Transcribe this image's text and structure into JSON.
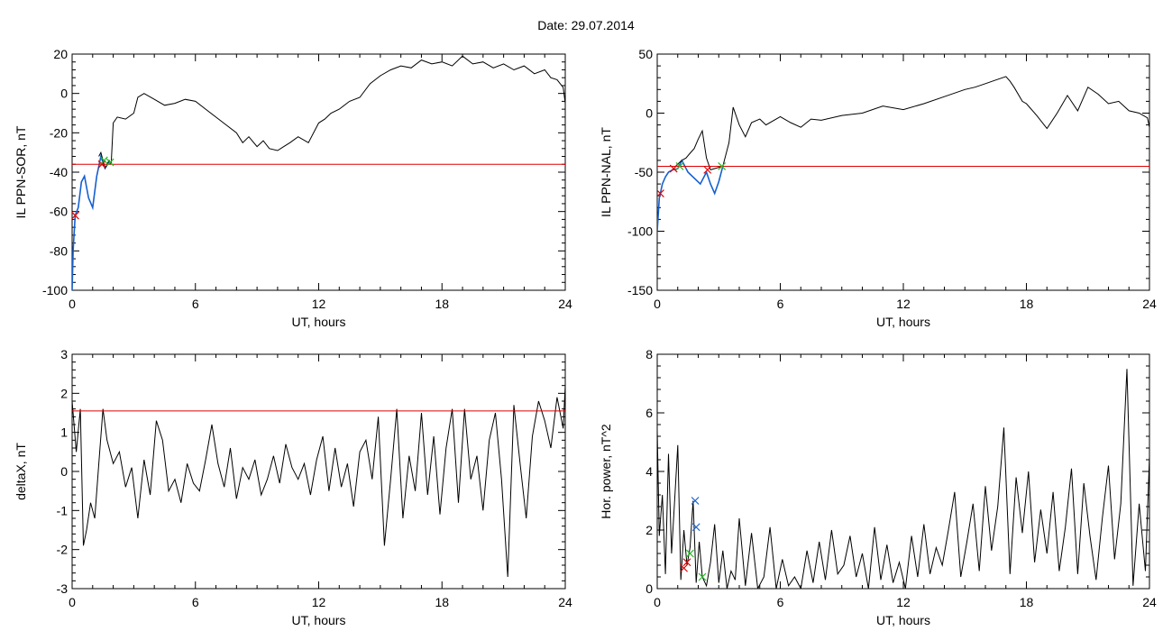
{
  "page": {
    "date_label": "Date:  29.07.2014"
  },
  "colors": {
    "axis": "#000000",
    "data": "#000000",
    "threshold": "#dd0000",
    "event": "#1560d0",
    "marker_red": "#dd0000",
    "marker_green": "#22bb22",
    "marker_blue": "#1560d0"
  },
  "chart_data": [
    {
      "id": "ppn-sor",
      "type": "line",
      "ylabel": "IL PPN-SOR, nT",
      "xlabel": "UT, hours",
      "xlim": [
        0,
        24
      ],
      "ylim": [
        -100,
        20
      ],
      "xticks": [
        0,
        6,
        12,
        18,
        24
      ],
      "xtick_labels": [
        "0",
        "6",
        "12",
        "18",
        "24"
      ],
      "yticks": [
        -100,
        -80,
        -60,
        -40,
        -20,
        0,
        20
      ],
      "ytick_labels": [
        "-100",
        "-80",
        "-60",
        "-40",
        "-20",
        "0",
        "20"
      ],
      "threshold": -36,
      "series": [
        {
          "role": "main",
          "x": [
            1.9,
            2.0,
            2.2,
            2.6,
            3.0,
            3.2,
            3.5,
            4.0,
            4.5,
            5.0,
            5.5,
            6.0,
            6.5,
            7.0,
            7.5,
            8.0,
            8.3,
            8.6,
            9.0,
            9.3,
            9.6,
            10.0,
            10.3,
            10.6,
            11.0,
            11.5,
            12.0,
            12.3,
            12.6,
            13.0,
            13.5,
            14.0,
            14.5,
            15.0,
            15.5,
            16.0,
            16.5,
            17.0,
            17.5,
            18.0,
            18.5,
            19.0,
            19.5,
            20.0,
            20.5,
            21.0,
            21.5,
            22.0,
            22.5,
            23.0,
            23.3,
            23.6,
            23.9,
            24.0
          ],
          "y": [
            -36,
            -15,
            -12,
            -13,
            -10,
            -2,
            0,
            -3,
            -6,
            -5,
            -3,
            -4,
            -8,
            -12,
            -16,
            -20,
            -25,
            -22,
            -27,
            -24,
            -28,
            -29,
            -27,
            -25,
            -22,
            -25,
            -15,
            -13,
            -10,
            -8,
            -4,
            -2,
            5,
            9,
            12,
            14,
            13,
            17,
            15,
            16,
            14,
            19,
            15,
            16,
            13,
            15,
            12,
            14,
            10,
            12,
            8,
            7,
            3,
            -5
          ]
        },
        {
          "role": "event",
          "x": [
            0.0,
            0.05,
            0.15,
            0.3,
            0.45,
            0.6,
            0.8,
            1.0,
            1.2,
            1.4,
            1.6,
            1.8,
            1.9
          ],
          "y": [
            -100,
            -80,
            -62,
            -58,
            -45,
            -42,
            -53,
            -58,
            -42,
            -32,
            -38,
            -35,
            -36
          ]
        },
        {
          "role": "pre",
          "x": [
            1.3,
            1.4,
            1.5,
            1.6,
            1.7,
            1.8,
            1.9
          ],
          "y": [
            -32,
            -30,
            -34,
            -38,
            -36,
            -34,
            -36
          ]
        }
      ],
      "markers": [
        {
          "x": 0.15,
          "y": -62,
          "color": "red"
        },
        {
          "x": 1.45,
          "y": -36,
          "color": "red"
        },
        {
          "x": 1.55,
          "y": -34,
          "color": "green"
        },
        {
          "x": 1.85,
          "y": -35,
          "color": "green"
        }
      ]
    },
    {
      "id": "ppn-nal",
      "type": "line",
      "ylabel": "IL PPN-NAL, nT",
      "xlabel": "UT, hours",
      "xlim": [
        0,
        24
      ],
      "ylim": [
        -150,
        50
      ],
      "xticks": [
        0,
        6,
        12,
        18,
        24
      ],
      "xtick_labels": [
        "0",
        "6",
        "12",
        "18",
        "24"
      ],
      "yticks": [
        -150,
        -100,
        -50,
        0,
        50
      ],
      "ytick_labels": [
        "-150",
        "-100",
        "-50",
        "0",
        "50"
      ],
      "threshold": -45,
      "series": [
        {
          "role": "main",
          "x": [
            1.2,
            1.4,
            1.6,
            1.8,
            2.0,
            2.2,
            2.4,
            2.6,
            3.2,
            3.5,
            3.7,
            4.0,
            4.3,
            4.6,
            5.0,
            5.3,
            6.0,
            6.5,
            7.0,
            7.5,
            8.0,
            9.0,
            10.0,
            11.0,
            12.0,
            13.0,
            14.0,
            15.0,
            15.5,
            16.0,
            16.5,
            17.0,
            17.2,
            17.4,
            17.8,
            18.0,
            18.5,
            19.0,
            19.5,
            20.0,
            20.5,
            21.0,
            21.5,
            22.0,
            22.5,
            23.0,
            23.5,
            23.9,
            24.0
          ],
          "y": [
            -40,
            -38,
            -34,
            -30,
            -22,
            -15,
            -38,
            -48,
            -45,
            -25,
            5,
            -10,
            -20,
            -8,
            -5,
            -10,
            -3,
            -8,
            -12,
            -5,
            -6,
            -2,
            0,
            6,
            3,
            8,
            14,
            20,
            22,
            25,
            28,
            31,
            27,
            22,
            10,
            8,
            -2,
            -13,
            0,
            15,
            2,
            22,
            16,
            8,
            10,
            2,
            0,
            -4,
            -12
          ]
        },
        {
          "role": "event",
          "x": [
            0.0,
            0.1,
            0.25,
            0.4,
            0.55,
            0.75,
            1.0,
            1.2,
            1.5,
            1.8,
            2.1,
            2.4,
            2.6,
            2.8,
            3.0,
            3.2
          ],
          "y": [
            -100,
            -72,
            -60,
            -54,
            -50,
            -48,
            -47,
            -40,
            -50,
            -55,
            -60,
            -50,
            -60,
            -68,
            -58,
            -45
          ]
        },
        {
          "role": "pre",
          "x": [
            0.75,
            0.95,
            1.2
          ],
          "y": [
            -48,
            -44,
            -40
          ]
        }
      ],
      "markers": [
        {
          "x": 0.15,
          "y": -68,
          "color": "red"
        },
        {
          "x": 0.8,
          "y": -47,
          "color": "red"
        },
        {
          "x": 1.1,
          "y": -45,
          "color": "green"
        },
        {
          "x": 2.45,
          "y": -48,
          "color": "red"
        },
        {
          "x": 3.15,
          "y": -45,
          "color": "green"
        }
      ]
    },
    {
      "id": "deltax",
      "type": "line",
      "ylabel": "deltaX, nT",
      "xlabel": "UT, hours",
      "xlim": [
        0,
        24
      ],
      "ylim": [
        -3,
        3
      ],
      "xticks": [
        0,
        6,
        12,
        18,
        24
      ],
      "xtick_labels": [
        "0",
        "6",
        "12",
        "18",
        "24"
      ],
      "yticks": [
        -3,
        -2,
        -1,
        0,
        1,
        2,
        3
      ],
      "ytick_labels": [
        "-3",
        "-2",
        "-1",
        "0",
        "1",
        "2",
        "3"
      ],
      "threshold": 1.55,
      "series": [
        {
          "role": "main",
          "x": [
            0,
            0.2,
            0.4,
            0.55,
            0.7,
            0.9,
            1.1,
            1.3,
            1.5,
            1.7,
            2.0,
            2.3,
            2.6,
            2.9,
            3.2,
            3.5,
            3.8,
            4.1,
            4.4,
            4.7,
            5.0,
            5.3,
            5.6,
            5.9,
            6.2,
            6.5,
            6.8,
            7.1,
            7.4,
            7.7,
            8.0,
            8.3,
            8.6,
            8.9,
            9.2,
            9.5,
            9.8,
            10.1,
            10.4,
            10.7,
            11.0,
            11.3,
            11.6,
            11.9,
            12.2,
            12.5,
            12.8,
            13.1,
            13.4,
            13.7,
            14.0,
            14.3,
            14.6,
            14.9,
            15.2,
            15.5,
            15.8,
            16.1,
            16.4,
            16.7,
            17.0,
            17.3,
            17.6,
            17.9,
            18.2,
            18.5,
            18.8,
            19.1,
            19.4,
            19.7,
            20.0,
            20.3,
            20.6,
            20.9,
            21.2,
            21.5,
            21.8,
            22.1,
            22.4,
            22.7,
            23.0,
            23.3,
            23.6,
            23.9,
            24.0
          ],
          "y": [
            1.8,
            0.5,
            1.6,
            -1.9,
            -1.5,
            -0.8,
            -1.2,
            0.2,
            1.6,
            0.8,
            0.2,
            0.5,
            -0.4,
            0.1,
            -1.2,
            0.3,
            -0.6,
            1.3,
            0.8,
            -0.5,
            -0.2,
            -0.8,
            0.2,
            -0.3,
            -0.5,
            0.3,
            1.2,
            0.2,
            -0.4,
            0.6,
            -0.7,
            0.1,
            -0.2,
            0.3,
            -0.6,
            -0.2,
            0.4,
            -0.3,
            0.7,
            0.1,
            -0.2,
            0.2,
            -0.6,
            0.3,
            0.9,
            -0.5,
            0.6,
            -0.4,
            0.2,
            -0.9,
            0.5,
            0.8,
            -0.2,
            1.4,
            -1.9,
            -0.2,
            1.6,
            -1.2,
            0.4,
            -0.5,
            1.5,
            -0.6,
            0.9,
            -1.1,
            0.6,
            1.6,
            -0.8,
            1.6,
            -0.2,
            0.4,
            -1.0,
            0.8,
            1.5,
            -0.2,
            -2.7,
            1.7,
            0.2,
            -1.2,
            0.9,
            1.8,
            1.3,
            0.6,
            1.9,
            1.1,
            2.2
          ]
        }
      ],
      "markers": []
    },
    {
      "id": "hor-power",
      "type": "line",
      "ylabel": "Hor. power, nT^2",
      "xlabel": "UT, hours",
      "xlim": [
        0,
        24
      ],
      "ylim": [
        0,
        8
      ],
      "xticks": [
        0,
        6,
        12,
        18,
        24
      ],
      "xtick_labels": [
        "0",
        "6",
        "12",
        "18",
        "24"
      ],
      "yticks": [
        0,
        2,
        4,
        6,
        8
      ],
      "ytick_labels": [
        "0",
        "2",
        "4",
        "6",
        "8"
      ],
      "threshold": null,
      "series": [
        {
          "role": "main",
          "x": [
            0,
            0.1,
            0.25,
            0.4,
            0.55,
            0.7,
            0.85,
            1.0,
            1.15,
            1.3,
            1.45,
            1.6,
            1.75,
            1.9,
            2.05,
            2.2,
            2.4,
            2.6,
            2.8,
            3.0,
            3.2,
            3.4,
            3.6,
            3.8,
            4.0,
            4.3,
            4.6,
            4.9,
            5.2,
            5.5,
            5.8,
            6.1,
            6.4,
            6.7,
            7.0,
            7.3,
            7.6,
            7.9,
            8.2,
            8.5,
            8.8,
            9.1,
            9.4,
            9.7,
            10.0,
            10.3,
            10.6,
            10.9,
            11.2,
            11.5,
            11.8,
            12.1,
            12.4,
            12.7,
            13.0,
            13.3,
            13.6,
            13.9,
            14.2,
            14.5,
            14.8,
            15.1,
            15.4,
            15.7,
            16.0,
            16.3,
            16.6,
            16.9,
            17.2,
            17.5,
            17.8,
            18.1,
            18.4,
            18.7,
            19.0,
            19.3,
            19.6,
            19.9,
            20.2,
            20.5,
            20.8,
            21.1,
            21.4,
            21.7,
            22.0,
            22.3,
            22.6,
            22.9,
            23.2,
            23.5,
            23.8,
            24.0
          ],
          "y": [
            5.4,
            1.8,
            3.2,
            0.5,
            4.6,
            1.2,
            3.0,
            4.9,
            0.3,
            2.0,
            0.8,
            1.4,
            3.0,
            0.2,
            1.6,
            0.4,
            0.1,
            0.9,
            2.2,
            0.2,
            1.3,
            0.0,
            0.6,
            0.3,
            2.4,
            0.1,
            1.9,
            0.0,
            0.4,
            2.1,
            0.0,
            1.0,
            0.1,
            0.4,
            0.0,
            1.3,
            0.2,
            1.6,
            0.3,
            2.0,
            0.5,
            0.8,
            1.8,
            0.4,
            1.2,
            0.0,
            2.1,
            0.3,
            1.5,
            0.2,
            0.9,
            0.0,
            1.8,
            0.4,
            2.2,
            0.5,
            1.4,
            0.8,
            2.0,
            3.3,
            0.4,
            1.6,
            2.9,
            0.6,
            3.5,
            1.3,
            2.8,
            5.5,
            0.5,
            3.8,
            1.9,
            4.0,
            0.9,
            2.7,
            1.2,
            3.3,
            0.6,
            2.1,
            4.1,
            0.5,
            3.6,
            1.8,
            0.3,
            2.4,
            4.2,
            1.0,
            2.9,
            7.5,
            0.1,
            2.9,
            0.6,
            4.5
          ]
        }
      ],
      "markers": [
        {
          "x": 1.3,
          "y": 0.7,
          "color": "red"
        },
        {
          "x": 1.45,
          "y": 0.9,
          "color": "red"
        },
        {
          "x": 1.6,
          "y": 1.2,
          "color": "green"
        },
        {
          "x": 1.85,
          "y": 3.0,
          "color": "blue"
        },
        {
          "x": 1.9,
          "y": 2.1,
          "color": "blue"
        },
        {
          "x": 2.2,
          "y": 0.4,
          "color": "green"
        }
      ]
    }
  ]
}
